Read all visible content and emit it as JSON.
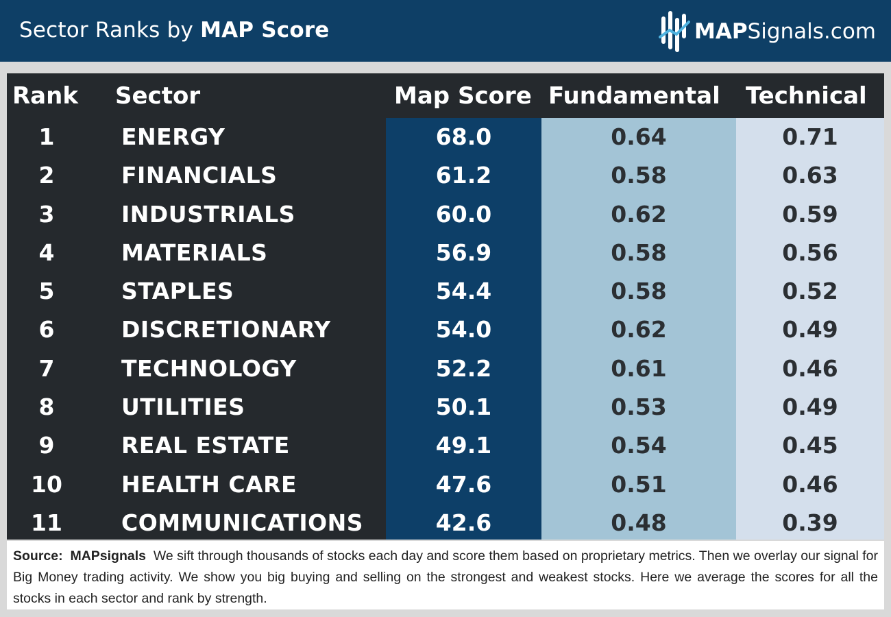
{
  "header": {
    "title_light": "Sector Ranks by ",
    "title_bold": "MAP Score",
    "brand_strong": "MAP",
    "brand_rest": "Signals.com",
    "background_color": "#0e3f66"
  },
  "table": {
    "headers": [
      "Rank",
      "Sector",
      "Map Score",
      "Fundamental",
      "Technical"
    ],
    "colors": {
      "base": "#25292d",
      "map_score_col": "#0d3f68",
      "fundamental_col": "#a3c4d6",
      "technical_col": "#d4dfec"
    }
  },
  "chart_data": {
    "type": "table",
    "columns": [
      "Rank",
      "Sector",
      "Map Score",
      "Fundamental",
      "Technical"
    ],
    "rows": [
      {
        "rank": "1",
        "sector": "ENERGY",
        "map_score": "68.0",
        "fundamental": "0.64",
        "technical": "0.71"
      },
      {
        "rank": "2",
        "sector": "FINANCIALS",
        "map_score": "61.2",
        "fundamental": "0.58",
        "technical": "0.63"
      },
      {
        "rank": "3",
        "sector": "INDUSTRIALS",
        "map_score": "60.0",
        "fundamental": "0.62",
        "technical": "0.59"
      },
      {
        "rank": "4",
        "sector": "MATERIALS",
        "map_score": "56.9",
        "fundamental": "0.58",
        "technical": "0.56"
      },
      {
        "rank": "5",
        "sector": "STAPLES",
        "map_score": "54.4",
        "fundamental": "0.58",
        "technical": "0.52"
      },
      {
        "rank": "6",
        "sector": "DISCRETIONARY",
        "map_score": "54.0",
        "fundamental": "0.62",
        "technical": "0.49"
      },
      {
        "rank": "7",
        "sector": "TECHNOLOGY",
        "map_score": "52.2",
        "fundamental": "0.61",
        "technical": "0.46"
      },
      {
        "rank": "8",
        "sector": "UTILITIES",
        "map_score": "50.1",
        "fundamental": "0.53",
        "technical": "0.49"
      },
      {
        "rank": "9",
        "sector": "REAL ESTATE",
        "map_score": "49.1",
        "fundamental": "0.54",
        "technical": "0.45"
      },
      {
        "rank": "10",
        "sector": "HEALTH CARE",
        "map_score": "47.6",
        "fundamental": "0.51",
        "technical": "0.46"
      },
      {
        "rank": "11",
        "sector": "COMMUNICATIONS",
        "map_score": "42.6",
        "fundamental": "0.48",
        "technical": "0.39"
      }
    ]
  },
  "footer": {
    "source_label": "Source:",
    "source_name": "MAPsignals",
    "text": "We sift through thousands of stocks each day and score them based on proprietary metrics. Then we overlay our signal for Big Money trading activity. We show you big buying and selling on the strongest and weakest stocks. Here we average the scores for all the stocks in each sector and rank by strength."
  }
}
